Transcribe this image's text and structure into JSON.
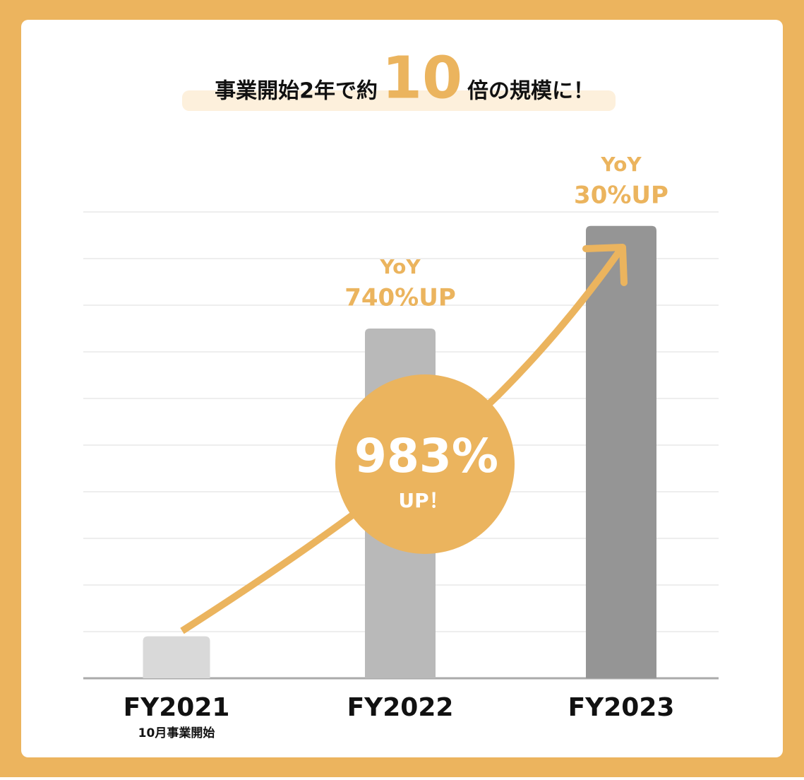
{
  "chart_data": {
    "type": "bar",
    "title_parts": [
      "事業開始2年で約",
      "10",
      "倍の規模に！"
    ],
    "categories": [
      "FY2021",
      "FY2022",
      "FY2023"
    ],
    "category_notes": [
      "10月事業開始",
      null,
      null
    ],
    "values": [
      0.9,
      7.5,
      9.7
    ],
    "colors": [
      "#d9d9d9",
      "#b9b9b9",
      "#959595"
    ],
    "value_annotations": [
      null,
      [
        "YoY",
        "740%UP"
      ],
      [
        "YoY",
        "30%UP"
      ]
    ],
    "badge": [
      "983%",
      "UP！"
    ],
    "accent_color": "#ebb45e",
    "ylim": [
      0,
      10
    ],
    "yticks": [
      0,
      1,
      2,
      3,
      4,
      5,
      6,
      7,
      8,
      9,
      10
    ],
    "grid": true
  }
}
